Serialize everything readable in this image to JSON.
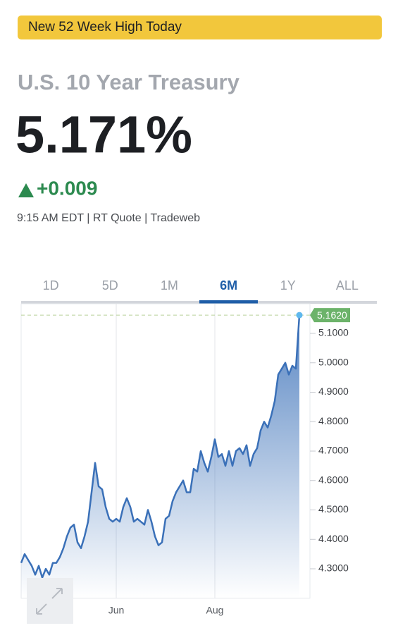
{
  "banner": "New 52 Week High Today",
  "quote": {
    "name": "U.S. 10 Year Treasury",
    "price": "5.171%",
    "change": "+0.009",
    "meta": "9:15 AM EDT | RT Quote | Tradeweb"
  },
  "tabs": [
    "1D",
    "5D",
    "1M",
    "6M",
    "1Y",
    "ALL"
  ],
  "chart_data": {
    "type": "area",
    "categories": [
      null,
      null,
      null,
      null,
      null,
      null,
      null,
      null,
      null,
      null,
      null,
      null,
      null,
      null,
      null,
      null,
      null,
      null,
      null,
      null,
      null,
      null,
      null,
      null,
      null,
      null,
      null,
      "Jun",
      null,
      null,
      null,
      null,
      null,
      null,
      null,
      null,
      null,
      null,
      null,
      null,
      null,
      null,
      null,
      null,
      null,
      null,
      null,
      null,
      null,
      null,
      null,
      null,
      null,
      null,
      null,
      "Aug",
      null,
      null,
      null,
      null,
      null,
      null,
      null,
      null,
      null,
      null,
      null,
      null,
      null,
      null,
      null,
      null,
      null,
      null,
      null,
      null,
      null,
      null,
      null,
      null
    ],
    "values": [
      4.32,
      4.35,
      4.33,
      4.31,
      4.28,
      4.31,
      4.27,
      4.3,
      4.28,
      4.32,
      4.32,
      4.34,
      4.37,
      4.41,
      4.44,
      4.45,
      4.39,
      4.37,
      4.41,
      4.46,
      4.56,
      4.66,
      4.58,
      4.57,
      4.51,
      4.47,
      4.46,
      4.47,
      4.46,
      4.51,
      4.54,
      4.51,
      4.46,
      4.47,
      4.46,
      4.45,
      4.5,
      4.46,
      4.41,
      4.38,
      4.39,
      4.47,
      4.48,
      4.53,
      4.56,
      4.58,
      4.6,
      4.56,
      4.56,
      4.64,
      4.63,
      4.7,
      4.66,
      4.63,
      4.68,
      4.74,
      4.68,
      4.69,
      4.65,
      4.7,
      4.65,
      4.7,
      4.71,
      4.69,
      4.72,
      4.65,
      4.69,
      4.71,
      4.77,
      4.8,
      4.78,
      4.82,
      4.87,
      4.96,
      4.98,
      5.0,
      4.96,
      4.99,
      4.98,
      5.162
    ],
    "value_labels": [
      null,
      null,
      null,
      null,
      null,
      null,
      null,
      null,
      null,
      null,
      null,
      null,
      null,
      null,
      null,
      null,
      null,
      null,
      null,
      null,
      null,
      null,
      null,
      null,
      null,
      null,
      null,
      null,
      null,
      null,
      null,
      null,
      null,
      null,
      null,
      null,
      null,
      null,
      null,
      null,
      null,
      null,
      null,
      null,
      null,
      null,
      null,
      null,
      null,
      null,
      null,
      null,
      null,
      null,
      null,
      null,
      null,
      null,
      null,
      null,
      null,
      null,
      null,
      null,
      null,
      null,
      null,
      null,
      null,
      null,
      null,
      null,
      null,
      null,
      null,
      null,
      null,
      null,
      null,
      "5.1620"
    ],
    "color": "#3a70b8",
    "ylim": [
      4.2,
      5.2
    ],
    "yticks": [
      {
        "value": 4.3,
        "label": "4.3000"
      },
      {
        "value": 4.4,
        "label": "4.4000"
      },
      {
        "value": 4.5,
        "label": "4.5000"
      },
      {
        "value": 4.6,
        "label": "4.6000"
      },
      {
        "value": 4.7,
        "label": "4.7000"
      },
      {
        "value": 4.8,
        "label": "4.8000"
      },
      {
        "value": 4.9,
        "label": "4.9000"
      },
      {
        "value": 5.0,
        "label": "5.0000"
      },
      {
        "value": 5.1,
        "label": "5.1000"
      }
    ]
  }
}
